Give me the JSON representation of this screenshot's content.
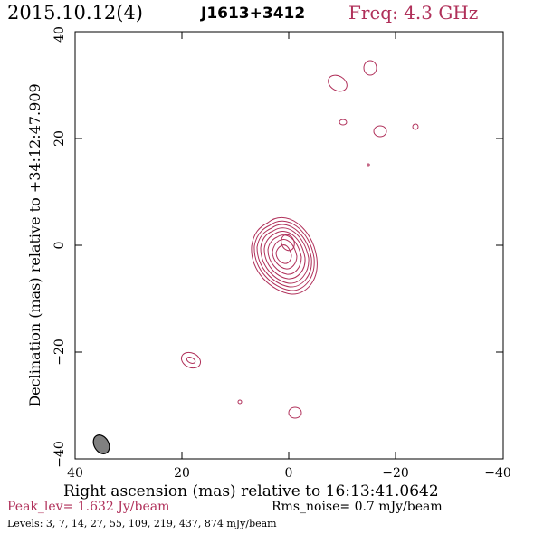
{
  "header": {
    "date_label": "2015.10.12(4)",
    "source_label": "J1613+3412",
    "freq_label": "Freq: 4.3 GHz"
  },
  "axes": {
    "xlabel": "Right ascension (mas) relative to 16:13:41.0642",
    "ylabel": "Declination (mas) relative to +34:12:47.909",
    "x_ticks": [
      "40",
      "20",
      "0",
      "−20",
      "−40"
    ],
    "y_ticks": [
      "40",
      "20",
      "0",
      "−20",
      "−40"
    ],
    "xlim": [
      40,
      -40
    ],
    "ylim": [
      -40,
      40
    ]
  },
  "footer": {
    "peak_label": "Peak_lev=  1.632 Jy/beam",
    "rms_label": "Rms_noise=  0.7 mJy/beam",
    "levels_label": "Levels:   3,   7,  14,  27,  55, 109, 219, 437, 874 mJy/beam"
  },
  "colors": {
    "contour": "#b0305a",
    "beam": "#808080"
  }
}
